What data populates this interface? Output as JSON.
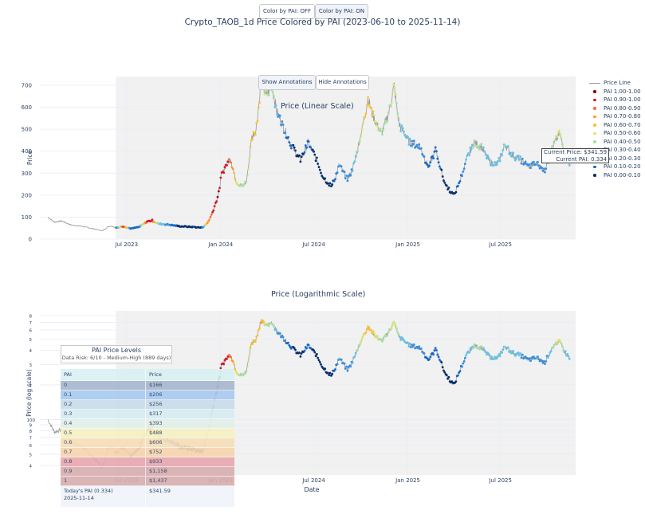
{
  "toggle_buttons": {
    "off_label": "Color by PAI: OFF",
    "on_label": "Color by PAI: ON"
  },
  "annotation_buttons": {
    "show_label": "Show Annotations",
    "hide_label": "Hide Annotations"
  },
  "title": "Crypto_TAOB_1d Price Colored by PAI (2023-06-10 to 2025-11-14)",
  "current_box": {
    "price_line": "Current Price: $341.59",
    "pai_line": "Current PAI: 0.334"
  },
  "legend": [
    {
      "label": "Price Line",
      "type": "line",
      "color": "#999999"
    },
    {
      "label": "PAI 1.00-1.00",
      "type": "dot",
      "color": "#8b0000"
    },
    {
      "label": "PAI 0.90-1.00",
      "type": "dot",
      "color": "#d7191c"
    },
    {
      "label": "PAI 0.80-0.90",
      "type": "dot",
      "color": "#f46d43"
    },
    {
      "label": "PAI 0.70-0.80",
      "type": "dot",
      "color": "#fd9a29"
    },
    {
      "label": "PAI 0.60-0.70",
      "type": "dot",
      "color": "#fdc22f"
    },
    {
      "label": "PAI 0.50-0.60",
      "type": "dot",
      "color": "#d9e66a"
    },
    {
      "label": "PAI 0.40-0.50",
      "type": "dot",
      "color": "#abdda4"
    },
    {
      "label": "PAI 0.30-0.40",
      "type": "dot",
      "color": "#66c2e6"
    },
    {
      "label": "PAI 0.20-0.30",
      "type": "dot",
      "color": "#3a8fdc"
    },
    {
      "label": "PAI 0.10-0.20",
      "type": "dot",
      "color": "#1667c9"
    },
    {
      "label": "PAI 0.00-0.10",
      "type": "dot",
      "color": "#08306b"
    }
  ],
  "pai_table": {
    "title": "PAI Price Levels",
    "subtitle": "Data Risk: 6/10 - Medium-High (889 days)",
    "headers": [
      "PAI",
      "Price"
    ],
    "rows": [
      {
        "pai": "0",
        "price": "$166",
        "color": "#a8b8cf"
      },
      {
        "pai": "0.1",
        "price": "$206",
        "color": "#a9cbf0"
      },
      {
        "pai": "0.2",
        "price": "$256",
        "color": "#c9dceb"
      },
      {
        "pai": "0.3",
        "price": "$317",
        "color": "#d6ecf3"
      },
      {
        "pai": "0.4",
        "price": "$393",
        "color": "#e2efe9"
      },
      {
        "pai": "0.5",
        "price": "$488",
        "color": "#f6f0c2"
      },
      {
        "pai": "0.6",
        "price": "$606",
        "color": "#f6deb8"
      },
      {
        "pai": "0.7",
        "price": "$752",
        "color": "#f6d4b0"
      },
      {
        "pai": "0.8",
        "price": "$933",
        "color": "#e8a8b0"
      },
      {
        "pai": "0.9",
        "price": "$1,158",
        "color": "#d8aeb0"
      },
      {
        "pai": "1",
        "price": "$1,437",
        "color": "#d8aeb0"
      }
    ],
    "footer_label": "Today's PAI (0.334)",
    "footer_date": "2025-11-14",
    "footer_price": "$341.59"
  },
  "chart_data": [
    {
      "type": "line",
      "title": "Price (Linear Scale)",
      "xlabel": "",
      "ylabel": "Price",
      "yscale": "linear",
      "ylim": [
        0,
        740
      ],
      "xlim": [
        "2023-01-28",
        "2025-11-25"
      ],
      "x_ticks": [
        "Jul 2023",
        "Jan 2024",
        "Jul 2024",
        "Jan 2025",
        "Jul 2025"
      ],
      "y_ticks": [
        0,
        100,
        200,
        300,
        400,
        500,
        600,
        700
      ],
      "grid": true,
      "legend": "right",
      "colored_range": [
        "2023-06-10",
        "2025-11-14"
      ]
    },
    {
      "type": "line",
      "title": "Price (Logarithmic Scale)",
      "xlabel": "Date",
      "ylabel": "Price (log scale)",
      "yscale": "log",
      "ylim": [
        33,
        880
      ],
      "xlim": [
        "2023-01-28",
        "2025-11-25"
      ],
      "x_ticks": [
        "Jul 2023",
        "Jan 2024",
        "Jul 2024",
        "Jan 2025",
        "Jul 2025"
      ],
      "y_ticks": [
        {
          "v": 40,
          "l": "4"
        },
        {
          "v": 50,
          "l": "5"
        },
        {
          "v": 60,
          "l": "6"
        },
        {
          "v": 70,
          "l": "7"
        },
        {
          "v": 80,
          "l": "8"
        },
        {
          "v": 90,
          "l": "9"
        },
        {
          "v": 100,
          "l": "100"
        },
        {
          "v": 200,
          "l": "2"
        },
        {
          "v": 300,
          "l": "3"
        },
        {
          "v": 400,
          "l": "4"
        },
        {
          "v": 500,
          "l": "5"
        },
        {
          "v": 600,
          "l": "6"
        },
        {
          "v": 700,
          "l": "7"
        },
        {
          "v": 800,
          "l": "8"
        }
      ],
      "grid": true
    }
  ],
  "price_series": {
    "keypoints": [
      [
        "2023-01-28",
        100,
        null
      ],
      [
        "2023-02-10",
        78,
        null
      ],
      [
        "2023-02-25",
        82,
        null
      ],
      [
        "2023-03-15",
        64,
        null
      ],
      [
        "2023-04-05",
        58,
        null
      ],
      [
        "2023-04-25",
        48,
        null
      ],
      [
        "2023-05-15",
        38,
        null
      ],
      [
        "2023-05-25",
        56,
        null
      ],
      [
        "2023-06-01",
        60,
        null
      ],
      [
        "2023-06-10",
        52,
        0.05
      ],
      [
        "2023-06-25",
        58,
        0.95
      ],
      [
        "2023-07-10",
        48,
        0.1
      ],
      [
        "2023-07-25",
        55,
        0.15
      ],
      [
        "2023-08-10",
        80,
        0.9
      ],
      [
        "2023-08-20",
        85,
        0.98
      ],
      [
        "2023-09-01",
        70,
        0.4
      ],
      [
        "2023-09-20",
        66,
        0.25
      ],
      [
        "2023-10-15",
        58,
        0.05
      ],
      [
        "2023-11-10",
        55,
        0.1
      ],
      [
        "2023-11-25",
        52,
        0.08
      ],
      [
        "2023-12-05",
        70,
        0.7
      ],
      [
        "2023-12-20",
        150,
        0.98
      ],
      [
        "2023-12-28",
        210,
        1.0
      ],
      [
        "2024-01-02",
        290,
        0.92
      ],
      [
        "2024-01-10",
        330,
        0.98
      ],
      [
        "2024-01-20",
        370,
        0.85
      ],
      [
        "2024-02-01",
        260,
        0.55
      ],
      [
        "2024-02-12",
        240,
        0.4
      ],
      [
        "2024-02-20",
        260,
        0.45
      ],
      [
        "2024-03-01",
        460,
        0.65
      ],
      [
        "2024-03-10",
        500,
        0.6
      ],
      [
        "2024-03-20",
        720,
        0.72
      ],
      [
        "2024-03-30",
        650,
        0.5
      ],
      [
        "2024-04-10",
        700,
        0.48
      ],
      [
        "2024-04-20",
        580,
        0.3
      ],
      [
        "2024-05-01",
        520,
        0.25
      ],
      [
        "2024-05-20",
        420,
        0.1
      ],
      [
        "2024-06-05",
        360,
        0.05
      ],
      [
        "2024-06-20",
        440,
        0.15
      ],
      [
        "2024-07-05",
        370,
        0.05
      ],
      [
        "2024-07-20",
        280,
        0.02
      ],
      [
        "2024-08-05",
        240,
        0.03
      ],
      [
        "2024-08-20",
        340,
        0.3
      ],
      [
        "2024-09-05",
        270,
        0.2
      ],
      [
        "2024-09-15",
        320,
        0.3
      ],
      [
        "2024-10-01",
        480,
        0.5
      ],
      [
        "2024-10-15",
        640,
        0.68
      ],
      [
        "2024-10-25",
        560,
        0.6
      ],
      [
        "2024-11-10",
        480,
        0.45
      ],
      [
        "2024-11-25",
        580,
        0.45
      ],
      [
        "2024-12-05",
        700,
        0.58
      ],
      [
        "2024-12-15",
        520,
        0.4
      ],
      [
        "2025-01-05",
        440,
        0.3
      ],
      [
        "2025-01-25",
        420,
        0.25
      ],
      [
        "2025-02-10",
        330,
        0.15
      ],
      [
        "2025-02-25",
        410,
        0.2
      ],
      [
        "2025-03-15",
        250,
        0.02
      ],
      [
        "2025-04-01",
        200,
        0.05
      ],
      [
        "2025-04-10",
        250,
        0.15
      ],
      [
        "2025-04-25",
        360,
        0.3
      ],
      [
        "2025-05-10",
        440,
        0.42
      ],
      [
        "2025-05-25",
        420,
        0.42
      ],
      [
        "2025-06-10",
        350,
        0.33
      ],
      [
        "2025-06-25",
        340,
        0.3
      ],
      [
        "2025-07-10",
        430,
        0.4
      ],
      [
        "2025-07-25",
        380,
        0.35
      ],
      [
        "2025-08-10",
        360,
        0.3
      ],
      [
        "2025-08-25",
        330,
        0.25
      ],
      [
        "2025-09-10",
        345,
        0.3
      ],
      [
        "2025-09-25",
        310,
        0.22
      ],
      [
        "2025-10-10",
        420,
        0.4
      ],
      [
        "2025-10-25",
        480,
        0.55
      ],
      [
        "2025-11-05",
        380,
        0.35
      ],
      [
        "2025-11-14",
        342,
        0.334
      ]
    ]
  }
}
